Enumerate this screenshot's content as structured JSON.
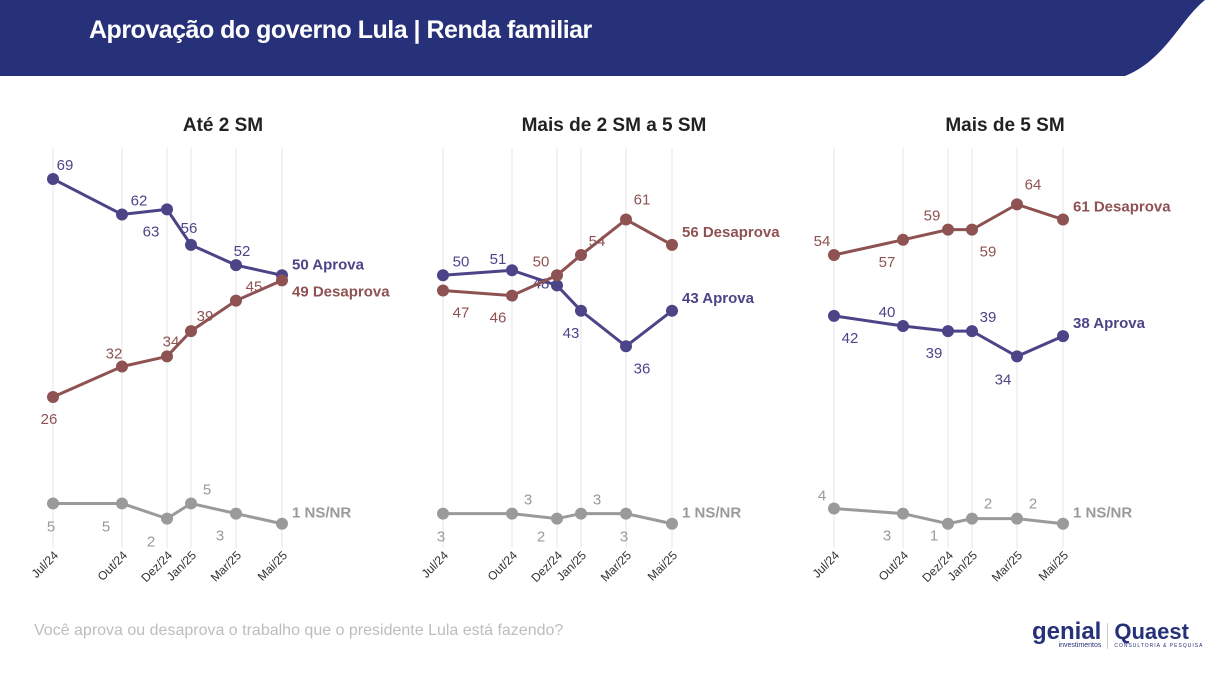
{
  "title": "Aprovação do governo Lula | Renda familiar",
  "question": "Você aprova ou desaprova o trabalho que o presidente Lula está fazendo?",
  "logos": {
    "genial": "genial",
    "genial_sub": "investimentos",
    "quaest": "Quaest",
    "quaest_sub": "CONSULTORIA & PESQUISA"
  },
  "colors": {
    "header": "#27317a",
    "aprova": "#4b4588",
    "desaprova": "#8e5252",
    "nsnr": "#9a9a9a"
  },
  "chart_data": [
    {
      "type": "line",
      "title": "Até 2 SM",
      "categories": [
        "Jul/24",
        "Out/24",
        "Dez/24",
        "Jan/25",
        "Mar/25",
        "Mai/25"
      ],
      "ylim": [
        0,
        75
      ],
      "grid": "vertical",
      "series": [
        {
          "name": "Aprova",
          "values": [
            69,
            62,
            63,
            56,
            52,
            50
          ]
        },
        {
          "name": "Desaprova",
          "values": [
            26,
            32,
            34,
            39,
            45,
            49
          ]
        },
        {
          "name": "NS/NR",
          "values": [
            5,
            5,
            2,
            5,
            3,
            1
          ]
        }
      ]
    },
    {
      "type": "line",
      "title": "Mais de 2 SM a 5 SM",
      "categories": [
        "Jul/24",
        "Out/24",
        "Dez/24",
        "Jan/25",
        "Mar/25",
        "Mai/25"
      ],
      "ylim": [
        0,
        75
      ],
      "grid": "vertical",
      "series": [
        {
          "name": "Aprova",
          "values": [
            50,
            51,
            48,
            43,
            36,
            43
          ]
        },
        {
          "name": "Desaprova",
          "values": [
            47,
            46,
            50,
            54,
            61,
            56
          ]
        },
        {
          "name": "NS/NR",
          "values": [
            3,
            3,
            2,
            3,
            3,
            1
          ]
        }
      ]
    },
    {
      "type": "line",
      "title": "Mais de 5 SM",
      "categories": [
        "Jul/24",
        "Out/24",
        "Dez/24",
        "Jan/25",
        "Mar/25",
        "Mai/25"
      ],
      "ylim": [
        0,
        75
      ],
      "grid": "vertical",
      "series": [
        {
          "name": "Aprova",
          "values": [
            42,
            40,
            39,
            39,
            34,
            38
          ]
        },
        {
          "name": "Desaprova",
          "values": [
            54,
            57,
            59,
            59,
            64,
            61
          ]
        },
        {
          "name": "NS/NR",
          "values": [
            4,
            3,
            1,
            2,
            2,
            1
          ]
        }
      ]
    }
  ]
}
